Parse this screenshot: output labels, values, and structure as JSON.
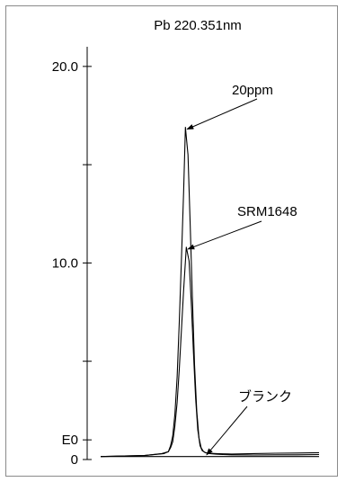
{
  "chart_data": {
    "type": "line",
    "title": "Pb 220.351nm",
    "ylim": [
      0,
      21
    ],
    "xlim": [
      0,
      100
    ],
    "yticks": [
      {
        "value": 20,
        "label": "20.0"
      },
      {
        "value": 15,
        "label": ""
      },
      {
        "value": 10,
        "label": "10.0"
      },
      {
        "value": 5,
        "label": ""
      },
      {
        "value": 1,
        "label": "E0"
      },
      {
        "value": 0,
        "label": "0"
      }
    ],
    "baseline_value": 0.15,
    "series": [
      {
        "name": "20ppm",
        "x": [
          0,
          20,
          28,
          31,
          32,
          33,
          34,
          35,
          36,
          37,
          38,
          38.8,
          40,
          41,
          42,
          43,
          44,
          45,
          46,
          47,
          48,
          50,
          53,
          56,
          60,
          70,
          80,
          90,
          100
        ],
        "y": [
          0.15,
          0.2,
          0.3,
          0.4,
          0.7,
          1.2,
          2.3,
          4.2,
          7,
          10.2,
          13.6,
          16.9,
          15.5,
          12,
          8.2,
          4.8,
          2.5,
          1.1,
          0.6,
          0.42,
          0.35,
          0.3,
          0.27,
          0.25,
          0.24,
          0.23,
          0.24,
          0.24,
          0.25
        ]
      },
      {
        "name": "SRM1648",
        "x": [
          0,
          20,
          29,
          31,
          32,
          33,
          34,
          35,
          36,
          37,
          38,
          39.2,
          40.5,
          41.5,
          42.5,
          43.5,
          44.5,
          45.5,
          46.5,
          48,
          50,
          53,
          56,
          60,
          70,
          80,
          90,
          100
        ],
        "y": [
          0.15,
          0.2,
          0.3,
          0.4,
          0.6,
          0.9,
          1.7,
          2.9,
          4.6,
          6.6,
          8.6,
          10.8,
          10.1,
          8,
          5.4,
          3.1,
          1.5,
          0.7,
          0.45,
          0.35,
          0.32,
          0.3,
          0.29,
          0.28,
          0.3,
          0.32,
          0.33,
          0.35
        ]
      },
      {
        "name": "ブランク",
        "x": [
          0,
          20,
          40,
          60,
          80,
          100
        ],
        "y": [
          0.15,
          0.15,
          0.15,
          0.15,
          0.15,
          0.15
        ]
      }
    ],
    "annotations": [
      {
        "text": "20ppm",
        "series": "20ppm"
      },
      {
        "text": "SRM1648",
        "series": "SRM1648"
      },
      {
        "text": "ブランク",
        "series": "ブランク"
      }
    ],
    "grid": false,
    "legend": "none"
  }
}
